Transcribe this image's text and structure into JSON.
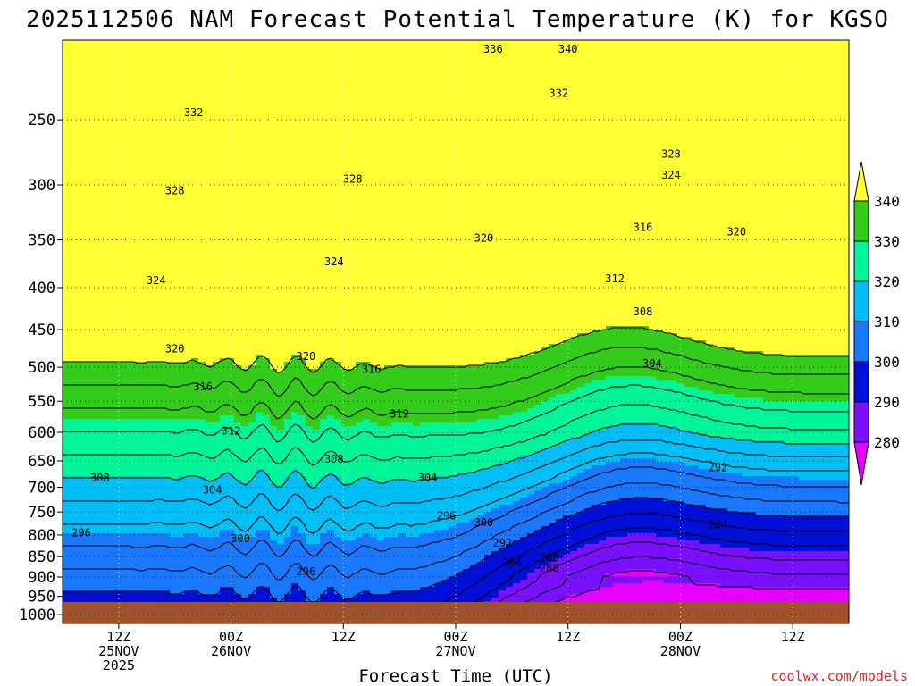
{
  "chart_data": {
    "type": "contour",
    "title": "2025112506 NAM Forecast Potential Temperature (K) for KGSO",
    "xlabel": "Forecast Time (UTC)",
    "ylabel": "",
    "y_axis": {
      "scale": "log-pressure",
      "range_hpa": [
        1025,
        200
      ],
      "ticks": [
        {
          "value": 250,
          "label": "250"
        },
        {
          "value": 300,
          "label": "300"
        },
        {
          "value": 350,
          "label": "350"
        },
        {
          "value": 400,
          "label": "400"
        },
        {
          "value": 450,
          "label": "450"
        },
        {
          "value": 500,
          "label": "500"
        },
        {
          "value": 550,
          "label": "550"
        },
        {
          "value": 600,
          "label": "600"
        },
        {
          "value": 650,
          "label": "650"
        },
        {
          "value": 700,
          "label": "700"
        },
        {
          "value": 750,
          "label": "750"
        },
        {
          "value": 800,
          "label": "800"
        },
        {
          "value": 850,
          "label": "850"
        },
        {
          "value": 900,
          "label": "900"
        },
        {
          "value": 950,
          "label": "950"
        },
        {
          "value": 1000,
          "label": "1000"
        }
      ]
    },
    "x_axis": {
      "range_hours": [
        0,
        84
      ],
      "ticks": [
        {
          "hour": 6,
          "lines": [
            "12Z",
            "25NOV",
            "2025"
          ]
        },
        {
          "hour": 18,
          "lines": [
            "00Z",
            "26NOV"
          ]
        },
        {
          "hour": 30,
          "lines": [
            "12Z"
          ]
        },
        {
          "hour": 42,
          "lines": [
            "00Z",
            "27NOV"
          ]
        },
        {
          "hour": 54,
          "lines": [
            "12Z"
          ]
        },
        {
          "hour": 66,
          "lines": [
            "00Z",
            "28NOV"
          ]
        },
        {
          "hour": 78,
          "lines": [
            "12Z"
          ]
        }
      ]
    },
    "grid": true,
    "surface_pressure_hpa": 1000,
    "levels_k": [
      280,
      290,
      300,
      310,
      320,
      330,
      340
    ],
    "colorbar": {
      "labels": [
        "340",
        "330",
        "320",
        "310",
        "300",
        "290",
        "280"
      ],
      "colors": [
        "#ffff33",
        "#33cc1a",
        "#00f59a",
        "#00bff7",
        "#1a78ff",
        "#0010d9",
        "#7a10ff",
        "#e600ff"
      ]
    },
    "contour_labels": [
      {
        "text": "336",
        "hour": 46,
        "p": 205
      },
      {
        "text": "340",
        "hour": 54,
        "p": 205
      },
      {
        "text": "332",
        "hour": 14,
        "p": 245
      },
      {
        "text": "332",
        "hour": 53,
        "p": 232
      },
      {
        "text": "328",
        "hour": 65,
        "p": 275
      },
      {
        "text": "324",
        "hour": 65,
        "p": 292
      },
      {
        "text": "328",
        "hour": 12,
        "p": 305
      },
      {
        "text": "328",
        "hour": 31,
        "p": 295
      },
      {
        "text": "316",
        "hour": 62,
        "p": 338
      },
      {
        "text": "320",
        "hour": 45,
        "p": 348
      },
      {
        "text": "320",
        "hour": 72,
        "p": 342
      },
      {
        "text": "324",
        "hour": 29,
        "p": 372
      },
      {
        "text": "324",
        "hour": 10,
        "p": 392
      },
      {
        "text": "312",
        "hour": 59,
        "p": 390
      },
      {
        "text": "308",
        "hour": 62,
        "p": 428
      },
      {
        "text": "320",
        "hour": 12,
        "p": 475
      },
      {
        "text": "320",
        "hour": 26,
        "p": 485
      },
      {
        "text": "316",
        "hour": 33,
        "p": 503
      },
      {
        "text": "304",
        "hour": 63,
        "p": 495
      },
      {
        "text": "316",
        "hour": 15,
        "p": 528
      },
      {
        "text": "312",
        "hour": 36,
        "p": 570
      },
      {
        "text": "312",
        "hour": 18,
        "p": 598
      },
      {
        "text": "308",
        "hour": 29,
        "p": 647
      },
      {
        "text": "292",
        "hour": 70,
        "p": 662
      },
      {
        "text": "308",
        "hour": 4,
        "p": 682
      },
      {
        "text": "304",
        "hour": 39,
        "p": 682
      },
      {
        "text": "304",
        "hour": 16,
        "p": 705
      },
      {
        "text": "296",
        "hour": 41,
        "p": 758
      },
      {
        "text": "300",
        "hour": 45,
        "p": 773
      },
      {
        "text": "284",
        "hour": 70,
        "p": 777
      },
      {
        "text": "296",
        "hour": 2,
        "p": 795
      },
      {
        "text": "300",
        "hour": 19,
        "p": 808
      },
      {
        "text": "292",
        "hour": 47,
        "p": 818
      },
      {
        "text": "288",
        "hour": 52,
        "p": 853
      },
      {
        "text": "284",
        "hour": 48,
        "p": 864
      },
      {
        "text": "280",
        "hour": 52,
        "p": 878
      },
      {
        "text": "296",
        "hour": 26,
        "p": 887
      }
    ]
  },
  "credit": "coolwx.com/models"
}
